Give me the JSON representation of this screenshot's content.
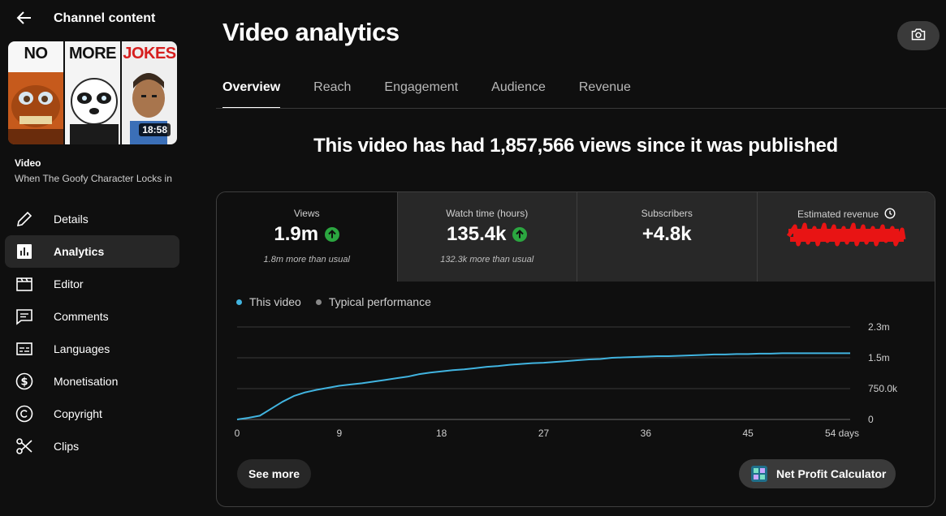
{
  "sidebar": {
    "back_title": "Channel content",
    "thumbnail": {
      "words": [
        "NO",
        "MORE",
        "JOKES"
      ],
      "duration": "18:58"
    },
    "video_label": "Video",
    "video_title": "When The Goofy Character Locks in",
    "nav": [
      {
        "label": "Details",
        "icon": "pencil-icon"
      },
      {
        "label": "Analytics",
        "icon": "analytics-icon",
        "active": true
      },
      {
        "label": "Editor",
        "icon": "clapperboard-icon"
      },
      {
        "label": "Comments",
        "icon": "comment-icon"
      },
      {
        "label": "Languages",
        "icon": "subtitles-icon"
      },
      {
        "label": "Monetisation",
        "icon": "dollar-icon"
      },
      {
        "label": "Copyright",
        "icon": "copyright-icon"
      },
      {
        "label": "Clips",
        "icon": "scissors-icon"
      }
    ]
  },
  "header": {
    "title": "Video analytics",
    "camera_icon": "camera-icon"
  },
  "tabs": [
    {
      "label": "Overview",
      "active": true
    },
    {
      "label": "Reach"
    },
    {
      "label": "Engagement"
    },
    {
      "label": "Audience"
    },
    {
      "label": "Revenue"
    }
  ],
  "headline": "This video has had 1,857,566 views since it was published",
  "metrics": [
    {
      "label": "Views",
      "value": "1.9m",
      "trend": "up",
      "note": "1.8m more than usual"
    },
    {
      "label": "Watch time (hours)",
      "value": "135.4k",
      "trend": "up",
      "note": "132.3k more than usual"
    },
    {
      "label": "Subscribers",
      "value": "+4.8k"
    },
    {
      "label": "Estimated revenue",
      "redacted": true
    }
  ],
  "legend": [
    {
      "label": "This video",
      "color": "#41b4e0"
    },
    {
      "label": "Typical performance",
      "color": "#888888"
    }
  ],
  "chart_data": {
    "type": "line",
    "x": [
      0,
      1,
      2,
      3,
      4,
      5,
      6,
      7,
      8,
      9,
      10,
      11,
      12,
      13,
      14,
      15,
      16,
      17,
      18,
      19,
      20,
      21,
      22,
      23,
      24,
      25,
      26,
      27,
      28,
      29,
      30,
      31,
      32,
      33,
      34,
      35,
      36,
      37,
      38,
      39,
      40,
      41,
      42,
      43,
      44,
      45,
      46,
      47,
      48,
      49,
      50,
      51,
      52,
      53,
      54
    ],
    "series": [
      {
        "name": "This video",
        "values": [
          0,
          40000,
          90000,
          260000,
          430000,
          570000,
          660000,
          720000,
          770000,
          820000,
          850000,
          880000,
          920000,
          960000,
          1000000,
          1040000,
          1100000,
          1140000,
          1170000,
          1200000,
          1220000,
          1250000,
          1280000,
          1300000,
          1330000,
          1350000,
          1370000,
          1380000,
          1400000,
          1420000,
          1440000,
          1460000,
          1470000,
          1500000,
          1510000,
          1520000,
          1530000,
          1540000,
          1540000,
          1550000,
          1560000,
          1570000,
          1580000,
          1580000,
          1590000,
          1590000,
          1600000,
          1600000,
          1610000,
          1610000,
          1610000,
          1610000,
          1610000,
          1610000,
          1610000
        ]
      }
    ],
    "x_ticks": [
      "0",
      "9",
      "18",
      "27",
      "36",
      "45",
      "54 days"
    ],
    "x_tick_values": [
      0,
      9,
      18,
      27,
      36,
      45,
      54
    ],
    "y_ticks": [
      "0",
      "750.0k",
      "1.5m",
      "2.3m"
    ],
    "y_tick_values": [
      0,
      750000,
      1500000,
      2250000
    ],
    "ylim": [
      0,
      2250000
    ],
    "xlim": [
      0,
      54
    ],
    "grid": true,
    "legend": "top-left"
  },
  "buttons": {
    "see_more": "See more",
    "npc": "Net Profit Calculator"
  }
}
